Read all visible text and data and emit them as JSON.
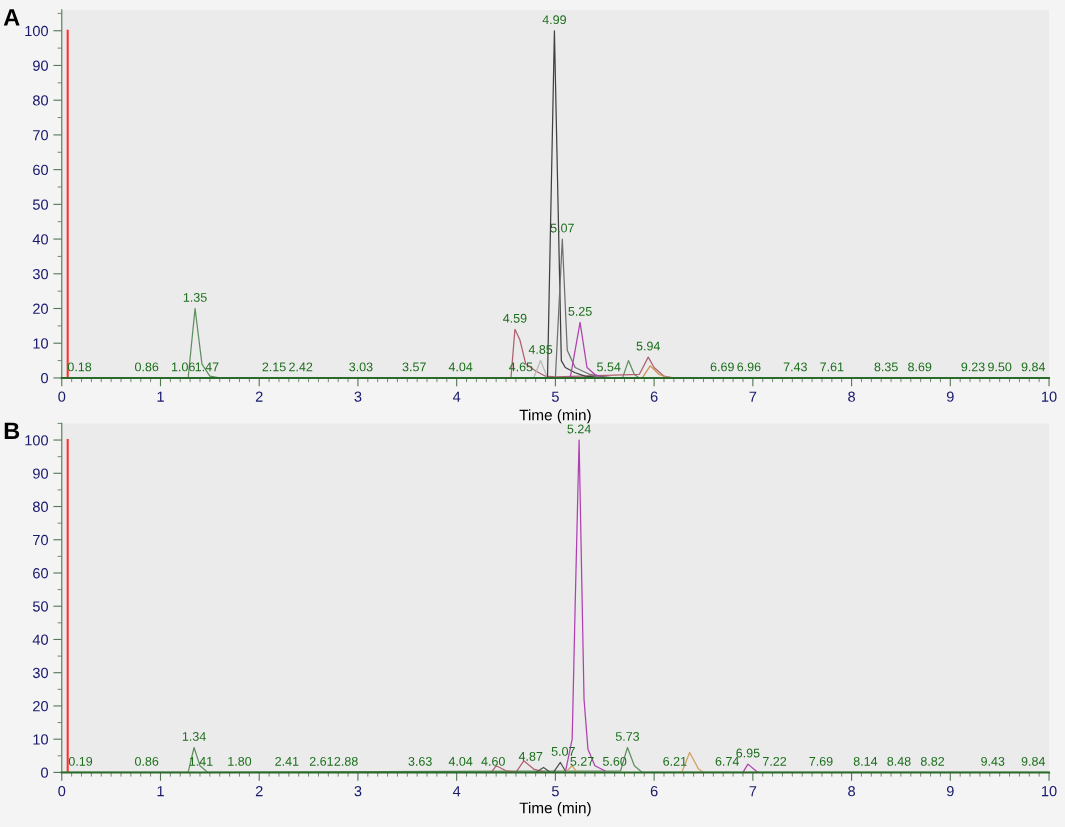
{
  "chart_data": [
    {
      "type": "line",
      "title": "A",
      "xlabel": "Time (min)",
      "xlim": [
        0,
        10
      ],
      "xticks": [
        0,
        1,
        2,
        3,
        4,
        5,
        6,
        7,
        8,
        9,
        10
      ],
      "ylim": [
        0,
        106
      ],
      "yticks": [
        0,
        10,
        20,
        30,
        40,
        50,
        60,
        70,
        80,
        90,
        100
      ],
      "grid": false,
      "legend": false,
      "marker": "none",
      "line_style": "solid",
      "ref_lines": [
        {
          "axis": "x",
          "value": 0.06,
          "color": "#ff3030"
        }
      ],
      "series": [
        {
          "color": "#5f8f5f",
          "x": [
            0,
            1.28,
            1.35,
            1.42,
            1.5,
            1.6,
            5.68,
            5.74,
            5.8,
            5.85,
            10
          ],
          "values": [
            0,
            0,
            20,
            4,
            0.5,
            0,
            0,
            5,
            1,
            0,
            0
          ]
        },
        {
          "color": "#b06070",
          "x": [
            4.55,
            4.59,
            4.64,
            4.7,
            4.8,
            4.9,
            5.0,
            5.85,
            5.94,
            6.0,
            6.1,
            6.2
          ],
          "values": [
            0,
            14,
            11,
            4,
            2,
            0.5,
            0.3,
            1,
            6,
            3,
            0.5,
            0
          ]
        },
        {
          "color": "#b8b8b8",
          "x": [
            4.78,
            4.85,
            4.92
          ],
          "values": [
            0,
            5,
            0
          ]
        },
        {
          "color": "#404040",
          "x": [
            4.92,
            4.99,
            5.06,
            5.1,
            5.2,
            5.3,
            5.5
          ],
          "values": [
            0,
            100,
            5,
            3,
            1.5,
            0.5,
            0
          ]
        },
        {
          "color": "#707070",
          "x": [
            5.0,
            5.07,
            5.12,
            5.2,
            5.35,
            5.45,
            5.6
          ],
          "values": [
            0,
            40,
            8,
            3,
            1,
            0.5,
            0
          ]
        },
        {
          "color": "#b040b0",
          "x": [
            5.15,
            5.25,
            5.32,
            5.4,
            5.5
          ],
          "values": [
            0,
            16,
            3,
            1,
            0
          ]
        },
        {
          "color": "#d09050",
          "x": [
            5.88,
            5.96,
            6.05,
            6.15
          ],
          "values": [
            0,
            3.5,
            1,
            0
          ]
        }
      ],
      "annotations": [
        {
          "text": "0.18",
          "x": 0.18,
          "y": 0
        },
        {
          "text": "0.86",
          "x": 0.86,
          "y": 0
        },
        {
          "text": "1.06",
          "x": 1.23,
          "y": 0
        },
        {
          "text": "1.35",
          "x": 1.35,
          "y": 20
        },
        {
          "text": "1.47",
          "x": 1.47,
          "y": 0
        },
        {
          "text": "2.15",
          "x": 2.15,
          "y": 0
        },
        {
          "text": "2.42",
          "x": 2.42,
          "y": 0
        },
        {
          "text": "3.03",
          "x": 3.03,
          "y": 0
        },
        {
          "text": "3.57",
          "x": 3.57,
          "y": 0
        },
        {
          "text": "4.04",
          "x": 4.04,
          "y": 0
        },
        {
          "text": "4.65",
          "x": 4.65,
          "y": 0
        },
        {
          "text": "4.59",
          "x": 4.59,
          "y": 14
        },
        {
          "text": "4.85",
          "x": 4.85,
          "y": 5
        },
        {
          "text": "4.99",
          "x": 4.99,
          "y": 100
        },
        {
          "text": "5.07",
          "x": 5.07,
          "y": 40
        },
        {
          "text": "5.25",
          "x": 5.25,
          "y": 16
        },
        {
          "text": "5.54",
          "x": 5.54,
          "y": 0
        },
        {
          "text": "5.94",
          "x": 5.94,
          "y": 6
        },
        {
          "text": "6.69",
          "x": 6.69,
          "y": 0
        },
        {
          "text": "6.96",
          "x": 6.96,
          "y": 0
        },
        {
          "text": "7.43",
          "x": 7.43,
          "y": 0
        },
        {
          "text": "7.61",
          "x": 7.8,
          "y": 0
        },
        {
          "text": "8.35",
          "x": 8.35,
          "y": 0
        },
        {
          "text": "8.69",
          "x": 8.69,
          "y": 0
        },
        {
          "text": "9.23",
          "x": 9.23,
          "y": 0
        },
        {
          "text": "9.50",
          "x": 9.5,
          "y": 0
        },
        {
          "text": "9.84",
          "x": 9.84,
          "y": 0
        }
      ]
    },
    {
      "type": "line",
      "title": "B",
      "xlabel": "Time (min)",
      "xlim": [
        0,
        10
      ],
      "xticks": [
        0,
        1,
        2,
        3,
        4,
        5,
        6,
        7,
        8,
        9,
        10
      ],
      "ylim": [
        0,
        105
      ],
      "yticks": [
        0,
        10,
        20,
        30,
        40,
        50,
        60,
        70,
        80,
        90,
        100
      ],
      "grid": false,
      "legend": false,
      "marker": "none",
      "line_style": "solid",
      "ref_lines": [
        {
          "axis": "x",
          "value": 0.06,
          "color": "#ff3030"
        }
      ],
      "series": [
        {
          "color": "#5f8f5f",
          "x": [
            0,
            1.28,
            1.34,
            1.4,
            1.48,
            5.66,
            5.73,
            5.8,
            5.88,
            10
          ],
          "values": [
            0,
            0,
            7.5,
            2,
            0,
            0.5,
            7.5,
            2,
            0,
            0
          ]
        },
        {
          "color": "#d0a060",
          "x": [
            5.1,
            5.17,
            5.22,
            5.26,
            6.28,
            6.36,
            6.45,
            6.5
          ],
          "values": [
            0,
            2,
            0,
            null,
            0,
            6,
            1,
            0
          ]
        },
        {
          "color": "#b06070",
          "x": [
            4.35,
            4.4,
            4.5,
            4.6,
            4.68,
            4.78,
            4.9
          ],
          "values": [
            0,
            2,
            0.5,
            0,
            3.5,
            1,
            0
          ]
        },
        {
          "color": "#505050",
          "x": [
            4.8,
            4.88,
            4.95,
            4.98,
            5.05,
            5.1
          ],
          "values": [
            0,
            1.5,
            0,
            0,
            3,
            0.5
          ]
        },
        {
          "color": "#b040b0",
          "x": [
            5.1,
            5.17,
            5.2,
            5.24,
            5.29,
            5.33,
            5.4,
            5.5,
            5.65,
            6.9,
            6.95,
            7.05
          ],
          "values": [
            0,
            10,
            50,
            100,
            22,
            7,
            2,
            0.5,
            null,
            0,
            2.5,
            0
          ]
        }
      ],
      "annotations": [
        {
          "text": "0.19",
          "x": 0.19,
          "y": 0
        },
        {
          "text": "0.86",
          "x": 0.86,
          "y": 0
        },
        {
          "text": "1.34",
          "x": 1.34,
          "y": 7.5
        },
        {
          "text": "1.41",
          "x": 1.41,
          "y": 0
        },
        {
          "text": "1.80",
          "x": 1.8,
          "y": 0
        },
        {
          "text": "2.41",
          "x": 2.28,
          "y": 0
        },
        {
          "text": "2.61",
          "x": 2.63,
          "y": 0
        },
        {
          "text": "2.88",
          "x": 2.88,
          "y": 0
        },
        {
          "text": "3.63",
          "x": 3.63,
          "y": 0
        },
        {
          "text": "4.04",
          "x": 4.04,
          "y": 0
        },
        {
          "text": "4.60",
          "x": 4.37,
          "y": 0
        },
        {
          "text": "4.87",
          "x": 4.75,
          "y": 1.5
        },
        {
          "text": "5.07",
          "x": 5.08,
          "y": 3
        },
        {
          "text": "5.24",
          "x": 5.24,
          "y": 100
        },
        {
          "text": "5.27",
          "x": 5.27,
          "y": 0
        },
        {
          "text": "5.60",
          "x": 5.6,
          "y": 0
        },
        {
          "text": "5.73",
          "x": 5.73,
          "y": 7.5
        },
        {
          "text": "6.21",
          "x": 6.21,
          "y": 0
        },
        {
          "text": "6.74",
          "x": 6.74,
          "y": 0
        },
        {
          "text": "6.95",
          "x": 6.95,
          "y": 2.5
        },
        {
          "text": "7.22",
          "x": 7.22,
          "y": 0
        },
        {
          "text": "7.69",
          "x": 7.69,
          "y": 0
        },
        {
          "text": "8.14",
          "x": 8.14,
          "y": 0
        },
        {
          "text": "8.48",
          "x": 8.48,
          "y": 0
        },
        {
          "text": "8.82",
          "x": 8.82,
          "y": 0
        },
        {
          "text": "9.43",
          "x": 9.43,
          "y": 0
        },
        {
          "text": "9.84",
          "x": 9.84,
          "y": 0
        }
      ]
    }
  ]
}
